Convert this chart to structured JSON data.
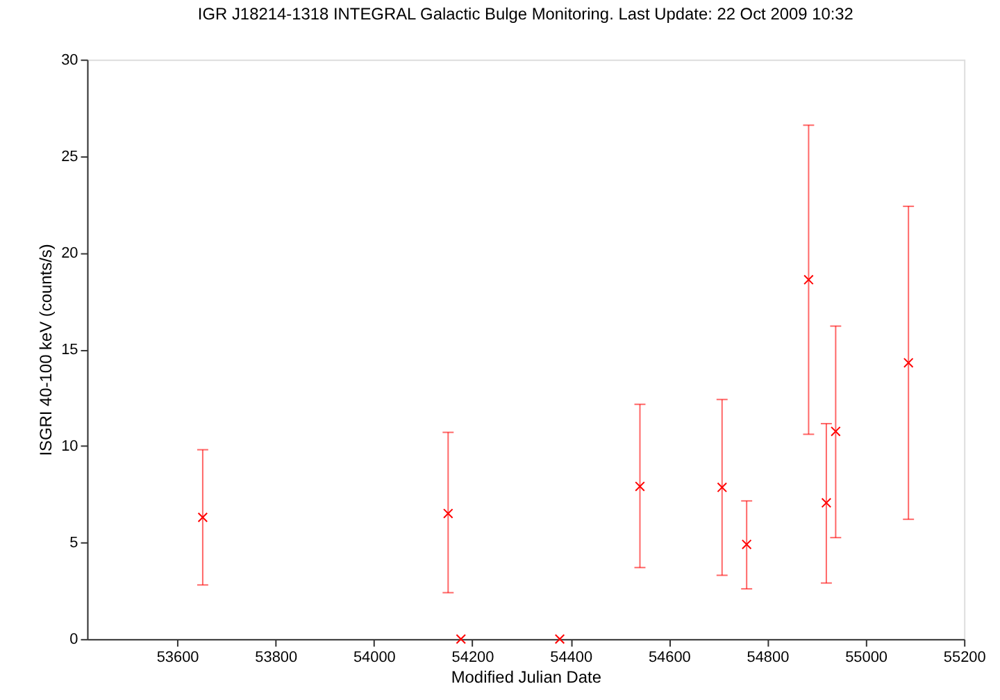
{
  "chart_data": {
    "type": "scatter",
    "title": "IGR J18214-1318   INTEGRAL Galactic Bulge Monitoring.  Last Update: 22 Oct 2009 10:32",
    "xlabel": "Modified Julian Date",
    "ylabel": "ISGRI 40-100 keV (counts/s)",
    "x": [
      53652,
      54151,
      54177,
      54378,
      54541,
      54708,
      54758,
      54884,
      54920,
      54939,
      55087
    ],
    "series": [
      {
        "color": "#ff0000",
        "values": [
          6.3,
          6.5,
          0,
          0,
          7.9,
          7.85,
          4.9,
          18.6,
          7.05,
          10.75,
          14.3
        ],
        "errors": [
          [
            2.8,
            9.8
          ],
          [
            2.4,
            10.7
          ],
          null,
          null,
          [
            3.7,
            12.15
          ],
          [
            3.3,
            12.4
          ],
          [
            2.6,
            7.15
          ],
          [
            10.6,
            26.6
          ],
          [
            2.9,
            11.15
          ],
          [
            5.25,
            16.2
          ],
          [
            6.2,
            22.4
          ]
        ]
      }
    ],
    "xlim": [
      53417,
      55200
    ],
    "xticks": [
      53600,
      53800,
      54000,
      54200,
      54400,
      54600,
      54800,
      55000,
      55200
    ],
    "ylim": [
      0,
      30
    ],
    "yticks": [
      0,
      5,
      10,
      15,
      20,
      25,
      30
    ],
    "grid": false,
    "marker": "cross"
  }
}
